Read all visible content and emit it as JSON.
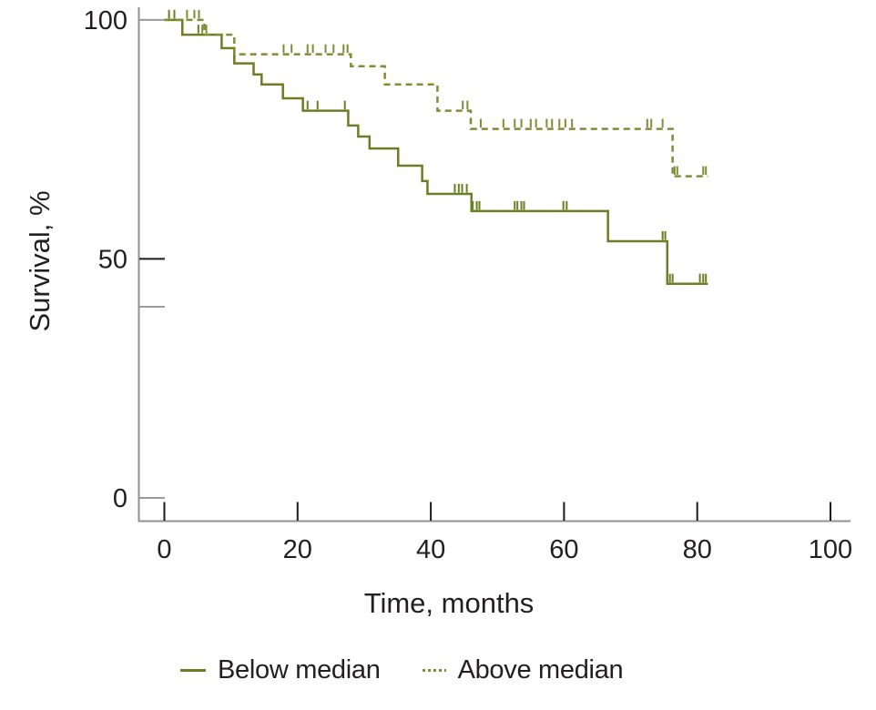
{
  "chart_data": {
    "type": "line",
    "subtype": "kaplan-meier-step-survival",
    "title": "",
    "xlabel": "Time, months",
    "ylabel": "Survival, %",
    "xlim": [
      0,
      103
    ],
    "ylim": [
      0,
      100
    ],
    "grid": false,
    "x_ticks": [
      0,
      20,
      40,
      60,
      80,
      100
    ],
    "y_ticks": [
      {
        "value": 100,
        "label": "100",
        "shade": "gray"
      },
      {
        "value": 50,
        "label": "50",
        "shade": "black"
      },
      {
        "value": 40,
        "label": "",
        "shade": "gray"
      },
      {
        "value": 0,
        "label": "0",
        "shade": "gray"
      }
    ],
    "colors": {
      "axis": "#919191",
      "tick_black": "#1a1a1a",
      "tick_gray": "#9a9a9a",
      "text": "#231f20",
      "series_below": "#6b7e23",
      "series_above": "#7d8f35"
    },
    "series": [
      {
        "name": "Below median",
        "style": "solid",
        "color": "#6b7e23",
        "steps": [
          [
            0,
            100
          ],
          [
            2.7,
            96.9
          ],
          [
            8.6,
            94.1
          ],
          [
            10.5,
            90.9
          ],
          [
            13.4,
            88.6
          ],
          [
            14.6,
            86.5
          ],
          [
            17.8,
            83.6
          ],
          [
            20.8,
            81.0
          ],
          [
            27.6,
            77.9
          ],
          [
            29.1,
            75.6
          ],
          [
            30.8,
            73.1
          ],
          [
            35.1,
            69.5
          ],
          [
            38.7,
            66.3
          ],
          [
            39.5,
            63.6
          ],
          [
            46.1,
            60.0
          ],
          [
            66.6,
            53.7
          ],
          [
            75.5,
            44.8
          ]
        ],
        "end_time": 81.6,
        "censors": [
          [
            0.7,
            100
          ],
          [
            1.5,
            100
          ],
          [
            5.1,
            96.9
          ],
          [
            21.5,
            81.0
          ],
          [
            23.0,
            81.0
          ],
          [
            27.1,
            81.0
          ],
          [
            43.6,
            63.6
          ],
          [
            44.2,
            63.6
          ],
          [
            44.7,
            63.6
          ],
          [
            45.4,
            63.6
          ],
          [
            46.3,
            60.0
          ],
          [
            46.9,
            60.0
          ],
          [
            47.3,
            60.0
          ],
          [
            52.6,
            60.0
          ],
          [
            53.0,
            60.0
          ],
          [
            53.6,
            60.0
          ],
          [
            54.0,
            60.0
          ],
          [
            59.9,
            60.0
          ],
          [
            60.4,
            60.0
          ],
          [
            74.8,
            53.7
          ],
          [
            75.2,
            53.7
          ],
          [
            75.9,
            44.8
          ],
          [
            76.3,
            44.8
          ],
          [
            80.4,
            44.8
          ],
          [
            80.9,
            44.8
          ],
          [
            81.3,
            44.8
          ]
        ]
      },
      {
        "name": "Above median",
        "style": "dashed",
        "color": "#7d8f35",
        "steps": [
          [
            0,
            100
          ],
          [
            6.0,
            96.9
          ],
          [
            10.5,
            92.8
          ],
          [
            28.0,
            90.3
          ],
          [
            33.1,
            86.5
          ],
          [
            41.0,
            81.0
          ],
          [
            46.0,
            77.2
          ],
          [
            76.3,
            67.3
          ]
        ],
        "end_time": 81.6,
        "censors": [
          [
            3.4,
            100
          ],
          [
            4.5,
            100
          ],
          [
            5.2,
            100
          ],
          [
            5.7,
            96.9
          ],
          [
            6.3,
            96.9
          ],
          [
            17.9,
            92.8
          ],
          [
            19.1,
            92.8
          ],
          [
            21.5,
            92.8
          ],
          [
            22.3,
            92.8
          ],
          [
            24.2,
            92.8
          ],
          [
            25.4,
            92.8
          ],
          [
            26.9,
            92.8
          ],
          [
            27.5,
            92.8
          ],
          [
            44.8,
            81.0
          ],
          [
            45.5,
            81.0
          ],
          [
            47.5,
            77.2
          ],
          [
            50.9,
            77.2
          ],
          [
            52.6,
            77.2
          ],
          [
            53.6,
            77.2
          ],
          [
            55.0,
            77.2
          ],
          [
            55.8,
            77.2
          ],
          [
            57.4,
            77.2
          ],
          [
            58.2,
            77.2
          ],
          [
            59.3,
            77.2
          ],
          [
            60.2,
            77.2
          ],
          [
            61.2,
            77.2
          ],
          [
            72.5,
            77.2
          ],
          [
            73.1,
            77.2
          ],
          [
            74.8,
            77.2
          ],
          [
            76.6,
            67.3
          ],
          [
            77.0,
            67.3
          ],
          [
            80.9,
            67.3
          ],
          [
            81.3,
            67.3
          ]
        ]
      }
    ],
    "legend": {
      "position": "bottom",
      "entries": [
        {
          "label": "Below median",
          "style": "solid"
        },
        {
          "label": "Above median",
          "style": "dashed"
        }
      ]
    }
  }
}
